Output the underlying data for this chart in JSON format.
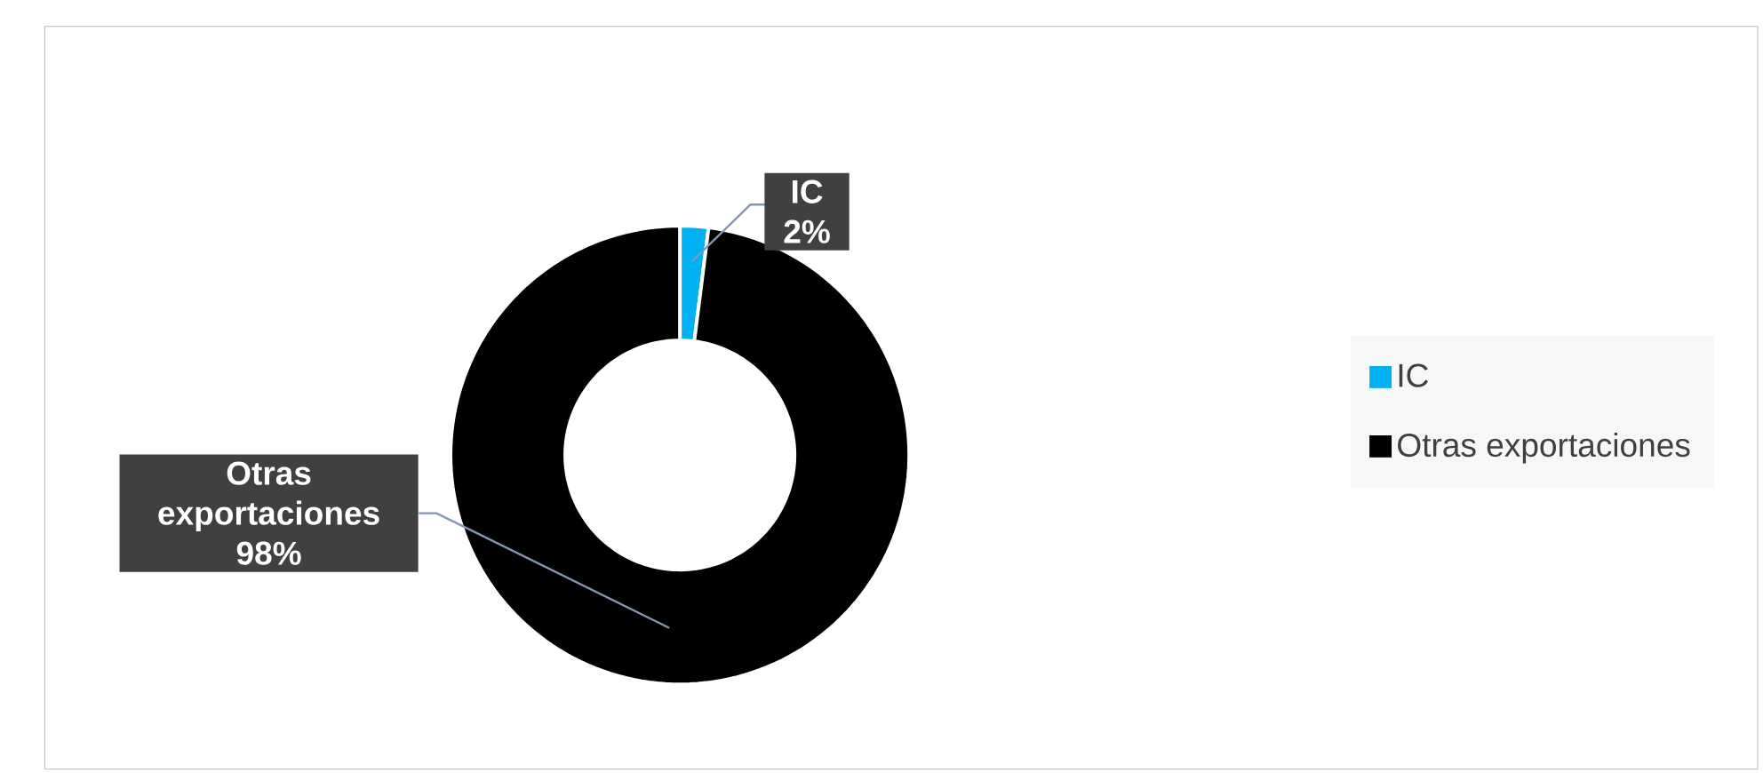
{
  "chart_data": {
    "type": "donut",
    "categories": [
      "IC",
      "Otras exportaciones"
    ],
    "values": [
      2,
      98
    ],
    "colors": [
      "#00b0f0",
      "#000000"
    ],
    "value_labels": [
      "2%",
      "98%"
    ],
    "legend": "right"
  }
}
